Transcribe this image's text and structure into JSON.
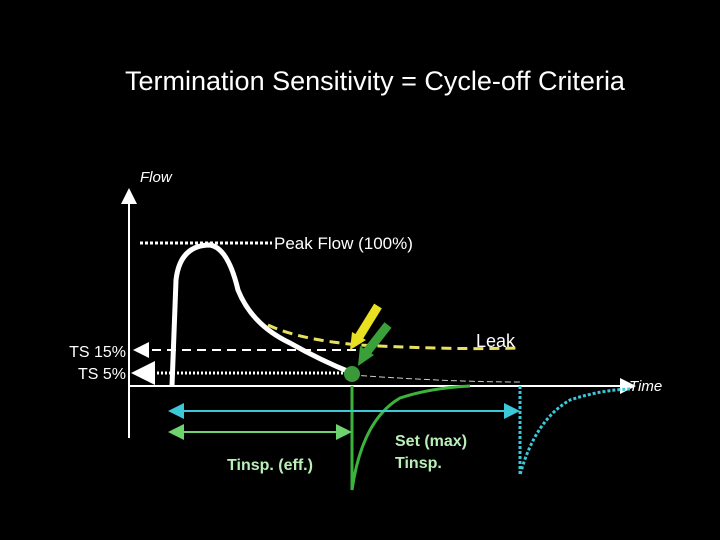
{
  "title": "Termination Sensitivity = Cycle-off Criteria",
  "axes": {
    "y_label": "Flow",
    "x_label": "Time"
  },
  "labels": {
    "peak": "Peak Flow (100%)",
    "leak": "Leak",
    "ts15": "TS 15%",
    "ts5": "TS 5%",
    "tinsp_eff": "Tinsp. (eff.)",
    "set_max_line1": "Set (max)",
    "set_max_line2": "Tinsp."
  }
}
